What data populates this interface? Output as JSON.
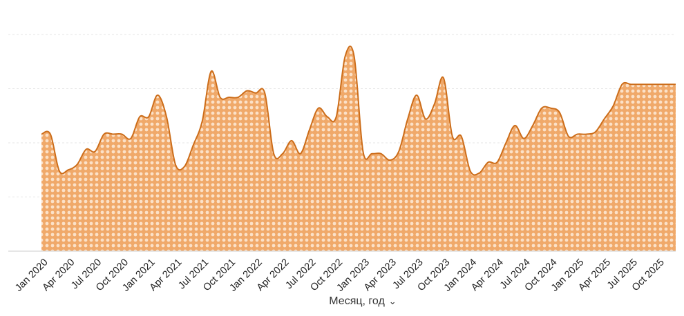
{
  "chart_data": {
    "type": "area",
    "x": [
      "Jan 2020",
      "Feb 2020",
      "Mar 2020",
      "Apr 2020",
      "May 2020",
      "Jun 2020",
      "Jul 2020",
      "Aug 2020",
      "Sep 2020",
      "Oct 2020",
      "Nov 2020",
      "Dec 2020",
      "Jan 2021",
      "Feb 2021",
      "Mar 2021",
      "Apr 2021",
      "May 2021",
      "Jun 2021",
      "Jul 2021",
      "Aug 2021",
      "Sep 2021",
      "Oct 2021",
      "Nov 2021",
      "Dec 2021",
      "Jan 2022",
      "Feb 2022",
      "Mar 2022",
      "Apr 2022",
      "May 2022",
      "Jun 2022",
      "Jul 2022",
      "Aug 2022",
      "Sep 2022",
      "Oct 2022",
      "Nov 2022",
      "Dec 2022",
      "Jan 2023",
      "Feb 2023",
      "Mar 2023",
      "Apr 2023",
      "May 2023",
      "Jun 2023",
      "Jul 2023",
      "Aug 2023",
      "Sep 2023",
      "Oct 2023",
      "Nov 2023",
      "Dec 2023",
      "Jan 2024",
      "Feb 2024",
      "Mar 2024",
      "Apr 2024",
      "May 2024",
      "Jun 2024",
      "Jul 2024",
      "Aug 2024",
      "Sep 2024",
      "Oct 2024",
      "Nov 2024",
      "Dec 2024",
      "Jan 2025",
      "Feb 2025",
      "Mar 2025",
      "Apr 2025",
      "May 2025",
      "Jun 2025",
      "Jul 2025",
      "Aug 2025",
      "Sep 2025",
      "Oct 2025",
      "Nov 2025",
      "Dec 2025"
    ],
    "tick_labels": [
      "Jan 2020",
      "Apr 2020",
      "Jul 2020",
      "Oct 2020",
      "Jan 2021",
      "Apr 2021",
      "Jul 2021",
      "Oct 2021",
      "Jan 2022",
      "Apr 2022",
      "Jul 2022",
      "Oct 2022",
      "Jan 2023",
      "Apr 2023",
      "Jul 2023",
      "Oct 2023",
      "Jan 2024",
      "Apr 2024",
      "Jul 2024",
      "Oct 2024",
      "Jan 2025",
      "Apr 2025",
      "Jul 2025",
      "Oct 2025"
    ],
    "series": [
      {
        "values": [
          54,
          54,
          37,
          37.5,
          40,
          47,
          46,
          54,
          54,
          54,
          52,
          62,
          62,
          72,
          62,
          40,
          39,
          49,
          60,
          83,
          71,
          71,
          71,
          74,
          73,
          73,
          45,
          45,
          51,
          45,
          56,
          66,
          62,
          62,
          90,
          90,
          46,
          45,
          45,
          42,
          46,
          61,
          72,
          61,
          68,
          80,
          53,
          53,
          37,
          36,
          41,
          41,
          50,
          58,
          52,
          58,
          66,
          66,
          64,
          53,
          54,
          54,
          55,
          61,
          67,
          77,
          77,
          77,
          77,
          77,
          77,
          77
        ]
      }
    ],
    "xlabel": "Месяц, год",
    "ylim": [
      0,
      100
    ],
    "grid": true,
    "legend": "none",
    "colors": {
      "fill": "#f0a96a",
      "line": "#cc6d1a",
      "grid": "#e6e6e6",
      "axis": "#cccccc"
    }
  },
  "axis": {
    "x_title": "Месяц, год",
    "x_title_icon": "chevron-down-icon"
  }
}
